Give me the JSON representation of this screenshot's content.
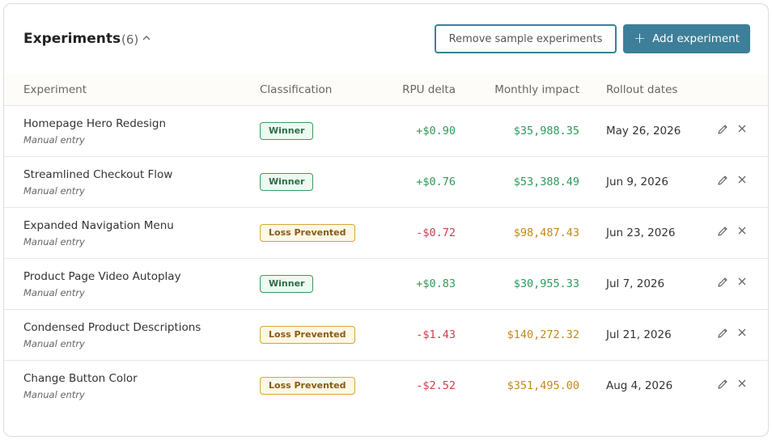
{
  "header": {
    "title": "Experiments",
    "count": "(6)",
    "collapse_icon": "chevron-up-icon",
    "remove_button": "Remove sample experiments",
    "add_button": "Add experiment",
    "add_icon": "plus-icon"
  },
  "columns": {
    "experiment": "Experiment",
    "classification": "Classification",
    "rpu": "RPU delta",
    "impact": "Monthly impact",
    "dates": "Rollout dates"
  },
  "colors": {
    "accent": "#3d7f99",
    "positive": "#2f9a5a",
    "negative": "#c9414f",
    "impact_loss": "#c08a18",
    "winner_badge": "#3c9a5c",
    "loss_badge": "#d6a43a"
  },
  "rows": [
    {
      "name": "Homepage Hero Redesign",
      "source": "Manual entry",
      "classification": "Winner",
      "rpu": "+$0.90",
      "impact": "$35,988.35",
      "date": "May 26, 2026"
    },
    {
      "name": "Streamlined Checkout Flow",
      "source": "Manual entry",
      "classification": "Winner",
      "rpu": "+$0.76",
      "impact": "$53,388.49",
      "date": "Jun 9, 2026"
    },
    {
      "name": "Expanded Navigation Menu",
      "source": "Manual entry",
      "classification": "Loss Prevented",
      "rpu": "-$0.72",
      "impact": "$98,487.43",
      "date": "Jun 23, 2026"
    },
    {
      "name": "Product Page Video Autoplay",
      "source": "Manual entry",
      "classification": "Winner",
      "rpu": "+$0.83",
      "impact": "$30,955.33",
      "date": "Jul 7, 2026"
    },
    {
      "name": "Condensed Product Descriptions",
      "source": "Manual entry",
      "classification": "Loss Prevented",
      "rpu": "-$1.43",
      "impact": "$140,272.32",
      "date": "Jul 21, 2026"
    },
    {
      "name": "Change Button Color",
      "source": "Manual entry",
      "classification": "Loss Prevented",
      "rpu": "-$2.52",
      "impact": "$351,495.00",
      "date": "Aug 4, 2026"
    }
  ]
}
